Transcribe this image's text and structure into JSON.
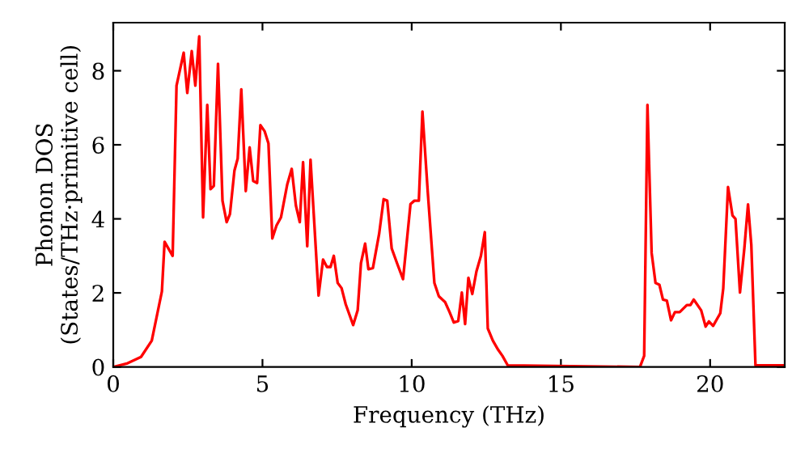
{
  "chart_data": {
    "type": "line",
    "xlabel": "Frequency (THz)",
    "ylabel": "Phonon DOS\n(States/THz·primitive cell)",
    "xlim": [
      0,
      22.5
    ],
    "ylim": [
      0,
      9.3
    ],
    "xticks": [
      0,
      5,
      10,
      15,
      20
    ],
    "yticks": [
      0,
      2,
      4,
      6,
      8
    ],
    "grid": false,
    "marker": "none",
    "line_style": "solid",
    "series": [
      {
        "color": "#ff0000",
        "x": [
          0,
          0.48,
          0.93,
          1.29,
          1.63,
          1.72,
          1.99,
          2.12,
          2.36,
          2.48,
          2.63,
          2.75,
          2.88,
          3.01,
          3.15,
          3.26,
          3.37,
          3.51,
          3.66,
          3.8,
          3.91,
          4.06,
          4.17,
          4.29,
          4.44,
          4.57,
          4.69,
          4.82,
          4.93,
          5.07,
          5.2,
          5.33,
          5.47,
          5.62,
          5.83,
          5.98,
          6.12,
          6.25,
          6.36,
          6.5,
          6.61,
          6.88,
          7.03,
          7.16,
          7.28,
          7.39,
          7.52,
          7.65,
          7.79,
          8.04,
          8.19,
          8.3,
          8.44,
          8.55,
          8.7,
          8.91,
          9.06,
          9.18,
          9.33,
          9.51,
          9.71,
          9.96,
          10.09,
          10.24,
          10.36,
          10.54,
          10.76,
          10.91,
          11.12,
          11.27,
          11.41,
          11.56,
          11.68,
          11.79,
          11.9,
          12.03,
          12.17,
          12.32,
          12.45,
          12.55,
          12.72,
          12.9,
          13.04,
          13.22,
          17.65,
          17.79,
          17.9,
          18.04,
          18.17,
          18.3,
          18.42,
          18.55,
          18.69,
          18.82,
          18.98,
          19.22,
          19.34,
          19.45,
          19.7,
          19.85,
          19.96,
          20.1,
          20.34,
          20.44,
          20.6,
          20.75,
          20.85,
          21.0,
          21.15,
          21.27,
          21.38,
          21.52,
          22.5
        ],
        "values": [
          0,
          0.1,
          0.27,
          0.71,
          2.04,
          3.38,
          3.0,
          7.6,
          8.49,
          7.4,
          8.53,
          7.6,
          8.93,
          4.04,
          7.08,
          4.8,
          4.89,
          8.19,
          4.49,
          3.91,
          4.13,
          5.3,
          5.63,
          7.5,
          4.75,
          5.93,
          5.02,
          4.97,
          6.53,
          6.37,
          6.04,
          3.47,
          3.82,
          4.04,
          4.93,
          5.35,
          4.36,
          3.91,
          5.53,
          3.26,
          5.6,
          1.93,
          2.9,
          2.7,
          2.7,
          3.0,
          2.27,
          2.13,
          1.69,
          1.13,
          1.53,
          2.8,
          3.33,
          2.64,
          2.67,
          3.6,
          4.53,
          4.49,
          3.2,
          2.8,
          2.37,
          4.4,
          4.49,
          4.49,
          6.9,
          4.71,
          2.27,
          1.91,
          1.75,
          1.48,
          1.2,
          1.24,
          2.01,
          1.16,
          2.41,
          1.97,
          2.58,
          3.0,
          3.64,
          1.04,
          0.71,
          0.46,
          0.3,
          0.04,
          0,
          0.3,
          7.08,
          3.08,
          2.27,
          2.22,
          1.82,
          1.79,
          1.26,
          1.48,
          1.48,
          1.67,
          1.67,
          1.82,
          1.53,
          1.09,
          1.23,
          1.11,
          1.45,
          2.12,
          4.86,
          4.09,
          4.0,
          2.01,
          3.23,
          4.39,
          3.3,
          0.04,
          0.04
        ]
      }
    ]
  }
}
